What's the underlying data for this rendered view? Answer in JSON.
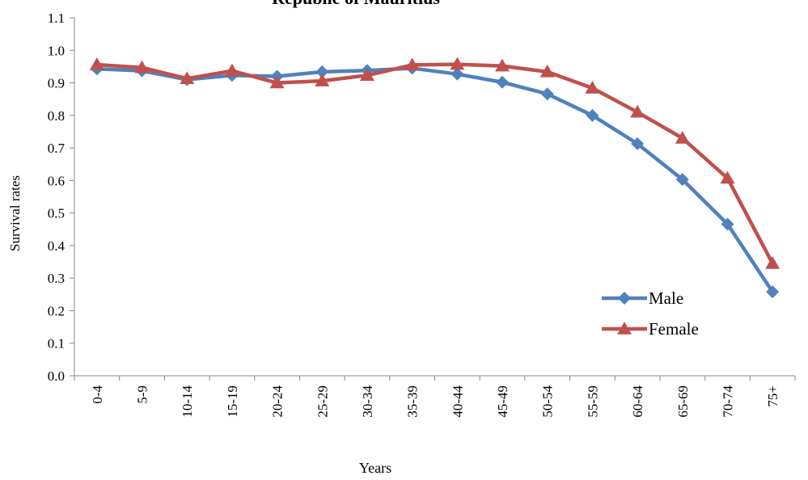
{
  "chart_data": {
    "type": "line",
    "title": "Republic of Mauritius",
    "xlabel": "Years",
    "ylabel": "Survival rates",
    "ylim": [
      0,
      1.1
    ],
    "yticks": [
      "0.0",
      "0.1",
      "0.2",
      "0.3",
      "0.4",
      "0.5",
      "0.6",
      "0.7",
      "0.8",
      "0.9",
      "1.0",
      "1.1"
    ],
    "categories": [
      "0-4",
      "5-9",
      "10-14",
      "15-19",
      "20-24",
      "25-29",
      "30-34",
      "35-39",
      "40-44",
      "45-49",
      "50-54",
      "55-59",
      "60-64",
      "65-69",
      "70-74",
      "75+"
    ],
    "series": [
      {
        "name": "Male",
        "color": "#4F81BD",
        "marker": "diamond",
        "values": [
          0.943,
          0.937,
          0.91,
          0.923,
          0.92,
          0.934,
          0.938,
          0.945,
          0.927,
          0.902,
          0.866,
          0.8,
          0.713,
          0.603,
          0.466,
          0.258
        ]
      },
      {
        "name": "Female",
        "color": "#C0504D",
        "marker": "triangle",
        "values": [
          0.956,
          0.947,
          0.913,
          0.937,
          0.9,
          0.906,
          0.923,
          0.955,
          0.957,
          0.952,
          0.934,
          0.884,
          0.81,
          0.73,
          0.607,
          0.345
        ]
      }
    ],
    "legend_position": "bottom-right",
    "grid": false
  }
}
